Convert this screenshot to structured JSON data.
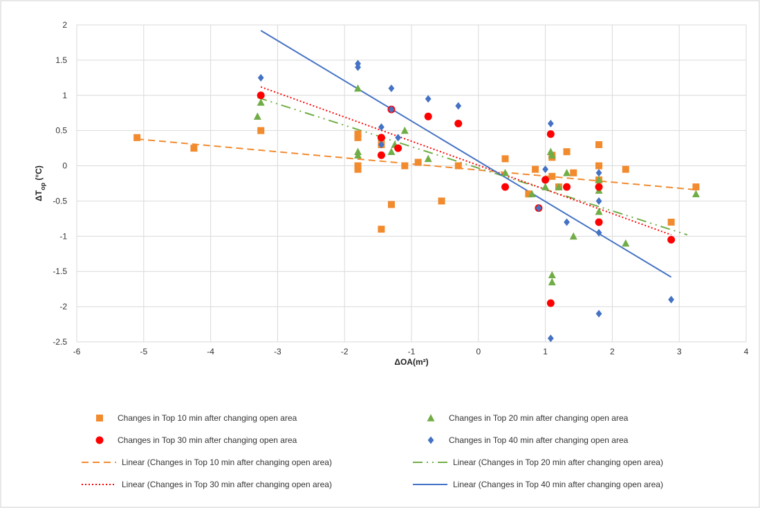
{
  "chart_data": {
    "type": "scatter",
    "title": "",
    "xlabel": "ΔOA(m²)",
    "ylabel_main": "ΔT",
    "ylabel_sub": "op",
    "ylabel_unit": " (°C)",
    "xlim": [
      -6,
      4
    ],
    "ylim": [
      -2.5,
      2
    ],
    "x_ticks": [
      -6,
      -5,
      -4,
      -3,
      -2,
      -1,
      0,
      1,
      2,
      3,
      4
    ],
    "y_ticks": [
      -2.5,
      -2,
      -1.5,
      -1,
      -0.5,
      0,
      0.5,
      1,
      1.5,
      2
    ],
    "grid": "horizontal and vertical",
    "legend_position": "bottom",
    "series": [
      {
        "name": "Changes in Top 10 min after changing open area",
        "color": "#f28a2e",
        "marker": "square",
        "points": [
          [
            -5.1,
            0.4
          ],
          [
            -4.25,
            0.25
          ],
          [
            -3.25,
            0.5
          ],
          [
            -1.8,
            0.45
          ],
          [
            -1.8,
            0.4
          ],
          [
            -1.8,
            0.0
          ],
          [
            -1.8,
            -0.05
          ],
          [
            -1.45,
            -0.9
          ],
          [
            -1.45,
            0.3
          ],
          [
            -1.3,
            -0.55
          ],
          [
            -1.1,
            0.0
          ],
          [
            -0.9,
            0.05
          ],
          [
            -0.55,
            -0.5
          ],
          [
            -0.3,
            0.0
          ],
          [
            0.4,
            0.1
          ],
          [
            0.75,
            -0.4
          ],
          [
            0.85,
            -0.05
          ],
          [
            1.1,
            -0.15
          ],
          [
            1.1,
            0.15
          ],
          [
            1.1,
            0.12
          ],
          [
            1.2,
            -0.3
          ],
          [
            1.32,
            0.2
          ],
          [
            1.42,
            -0.1
          ],
          [
            1.8,
            0.3
          ],
          [
            1.8,
            0.0
          ],
          [
            1.8,
            -0.2
          ],
          [
            2.2,
            -0.05
          ],
          [
            2.88,
            -0.8
          ],
          [
            3.25,
            -0.3
          ]
        ]
      },
      {
        "name": "Changes in Top 20 min after changing open area",
        "color": "#70ad47",
        "marker": "triangle",
        "points": [
          [
            -3.3,
            0.7
          ],
          [
            -3.25,
            0.9
          ],
          [
            -1.8,
            1.1
          ],
          [
            -1.8,
            0.2
          ],
          [
            -1.8,
            0.15
          ],
          [
            -1.45,
            0.4
          ],
          [
            -1.3,
            0.2
          ],
          [
            -1.25,
            0.3
          ],
          [
            -1.1,
            0.5
          ],
          [
            -0.75,
            0.1
          ],
          [
            0.4,
            -0.1
          ],
          [
            0.8,
            -0.4
          ],
          [
            1.0,
            -0.3
          ],
          [
            1.08,
            0.2
          ],
          [
            1.1,
            0.15
          ],
          [
            1.1,
            -1.55
          ],
          [
            1.1,
            -1.65
          ],
          [
            1.2,
            -0.3
          ],
          [
            1.32,
            -0.1
          ],
          [
            1.42,
            -1.0
          ],
          [
            1.8,
            -0.2
          ],
          [
            1.8,
            -0.35
          ],
          [
            1.8,
            -0.65
          ],
          [
            2.2,
            -1.1
          ],
          [
            3.25,
            -0.4
          ]
        ]
      },
      {
        "name": "Changes in Top 30 min after changing open area",
        "color": "#ff0000",
        "marker": "circle",
        "points": [
          [
            -3.25,
            1.0
          ],
          [
            -1.45,
            0.4
          ],
          [
            -1.45,
            0.15
          ],
          [
            -1.3,
            0.8
          ],
          [
            -1.2,
            0.25
          ],
          [
            -0.75,
            0.7
          ],
          [
            -0.3,
            0.6
          ],
          [
            0.4,
            -0.3
          ],
          [
            0.9,
            -0.6
          ],
          [
            1.0,
            -0.2
          ],
          [
            1.08,
            0.45
          ],
          [
            1.08,
            -1.95
          ],
          [
            1.32,
            -0.3
          ],
          [
            1.8,
            -0.3
          ],
          [
            1.8,
            -0.8
          ],
          [
            2.88,
            -1.05
          ]
        ]
      },
      {
        "name": "Changes in Top 40 min after changing open area",
        "color": "#4472c4",
        "marker": "diamond",
        "points": [
          [
            -3.25,
            1.25
          ],
          [
            -1.8,
            1.45
          ],
          [
            -1.8,
            1.4
          ],
          [
            -1.45,
            0.55
          ],
          [
            -1.45,
            0.3
          ],
          [
            -1.3,
            1.1
          ],
          [
            -1.3,
            0.8
          ],
          [
            -1.2,
            0.4
          ],
          [
            -0.75,
            0.95
          ],
          [
            -0.3,
            0.85
          ],
          [
            0.9,
            -0.6
          ],
          [
            1.0,
            -0.05
          ],
          [
            1.08,
            0.6
          ],
          [
            1.08,
            -2.45
          ],
          [
            1.32,
            -0.8
          ],
          [
            1.8,
            -0.1
          ],
          [
            1.8,
            -0.5
          ],
          [
            1.8,
            -0.95
          ],
          [
            1.8,
            -2.1
          ],
          [
            2.88,
            -1.9
          ]
        ]
      }
    ],
    "trendlines": [
      {
        "name": "Linear (Changes in Top 10 min after changing open area)",
        "color": "#f28a2e",
        "dash": "10 6",
        "x": [
          -5.1,
          3.25
        ],
        "y": [
          0.38,
          -0.34
        ]
      },
      {
        "name": "Linear (Changes in Top 20 min after changing open area)",
        "color": "#70ad47",
        "dash": "14 6 2 6 2 6",
        "x": [
          -3.3,
          3.12
        ],
        "y": [
          0.97,
          -0.98
        ]
      },
      {
        "name": "Linear (Changes in Top 30 min after changing open area)",
        "color": "#ff0000",
        "dash": "2 3",
        "x": [
          -3.25,
          2.88
        ],
        "y": [
          1.12,
          -0.98
        ]
      },
      {
        "name": "Linear (Changes in Top 40 min after changing open area)",
        "color": "#4472c4",
        "dash": "",
        "x": [
          -3.25,
          2.88
        ],
        "y": [
          1.92,
          -1.58
        ]
      }
    ]
  }
}
